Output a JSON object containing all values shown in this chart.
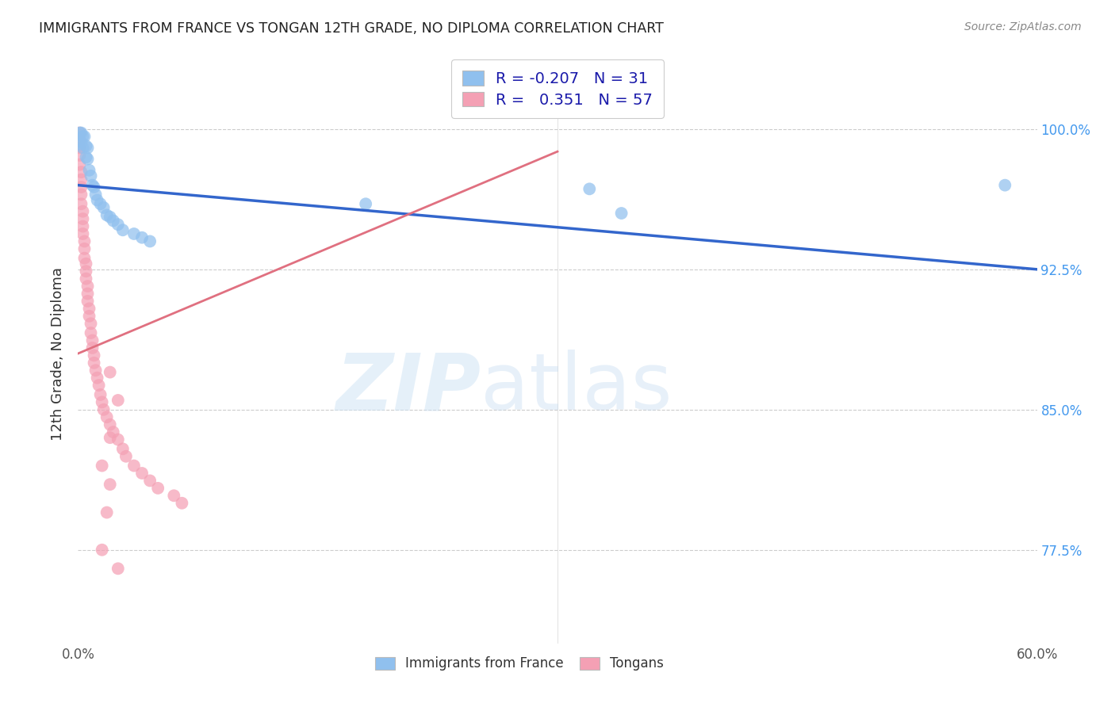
{
  "title": "IMMIGRANTS FROM FRANCE VS TONGAN 12TH GRADE, NO DIPLOMA CORRELATION CHART",
  "source": "Source: ZipAtlas.com",
  "ylabel_label": "12th Grade, No Diploma",
  "legend_france": "Immigrants from France",
  "legend_tonga": "Tongans",
  "R_france": "-0.207",
  "N_france": "31",
  "R_tonga": "0.351",
  "N_tonga": "57",
  "xmin": 0.0,
  "xmax": 0.6,
  "ymin": 0.725,
  "ymax": 1.035,
  "france_color": "#90C0EE",
  "tonga_color": "#F4A0B4",
  "france_line_color": "#3366CC",
  "tonga_line_color": "#E07080",
  "france_x": [
    0.001,
    0.001,
    0.002,
    0.002,
    0.003,
    0.003,
    0.004,
    0.005,
    0.005,
    0.006,
    0.006,
    0.007,
    0.008,
    0.009,
    0.01,
    0.011,
    0.012,
    0.014,
    0.016,
    0.018,
    0.02,
    0.022,
    0.025,
    0.028,
    0.035,
    0.04,
    0.045,
    0.18,
    0.32,
    0.58,
    0.34
  ],
  "france_y": [
    0.998,
    0.992,
    0.998,
    0.993,
    0.996,
    0.99,
    0.996,
    0.991,
    0.985,
    0.99,
    0.984,
    0.978,
    0.975,
    0.97,
    0.969,
    0.965,
    0.962,
    0.96,
    0.958,
    0.954,
    0.953,
    0.951,
    0.949,
    0.946,
    0.944,
    0.942,
    0.94,
    0.96,
    0.968,
    0.97,
    0.955
  ],
  "tonga_x": [
    0.001,
    0.001,
    0.001,
    0.001,
    0.001,
    0.002,
    0.002,
    0.002,
    0.002,
    0.002,
    0.003,
    0.003,
    0.003,
    0.003,
    0.004,
    0.004,
    0.004,
    0.005,
    0.005,
    0.005,
    0.006,
    0.006,
    0.006,
    0.007,
    0.007,
    0.008,
    0.008,
    0.009,
    0.009,
    0.01,
    0.01,
    0.011,
    0.012,
    0.013,
    0.014,
    0.015,
    0.016,
    0.018,
    0.02,
    0.022,
    0.025,
    0.028,
    0.03,
    0.035,
    0.04,
    0.045,
    0.05,
    0.06,
    0.065,
    0.02,
    0.025,
    0.02,
    0.015,
    0.02,
    0.018,
    0.015,
    0.025
  ],
  "tonga_y": [
    0.998,
    0.994,
    0.99,
    0.986,
    0.981,
    0.977,
    0.973,
    0.969,
    0.965,
    0.96,
    0.956,
    0.952,
    0.948,
    0.944,
    0.94,
    0.936,
    0.931,
    0.928,
    0.924,
    0.92,
    0.916,
    0.912,
    0.908,
    0.904,
    0.9,
    0.896,
    0.891,
    0.887,
    0.883,
    0.879,
    0.875,
    0.871,
    0.867,
    0.863,
    0.858,
    0.854,
    0.85,
    0.846,
    0.842,
    0.838,
    0.834,
    0.829,
    0.825,
    0.82,
    0.816,
    0.812,
    0.808,
    0.804,
    0.8,
    0.87,
    0.855,
    0.835,
    0.82,
    0.81,
    0.795,
    0.775,
    0.765
  ],
  "france_line_x": [
    0.0,
    0.6
  ],
  "france_line_y": [
    0.97,
    0.925
  ],
  "tonga_line_x": [
    0.0,
    0.3
  ],
  "tonga_line_y": [
    0.88,
    0.988
  ],
  "ytick_vals": [
    0.775,
    0.85,
    0.925,
    1.0
  ],
  "ytick_labels": [
    "77.5%",
    "85.0%",
    "92.5%",
    "100.0%"
  ]
}
